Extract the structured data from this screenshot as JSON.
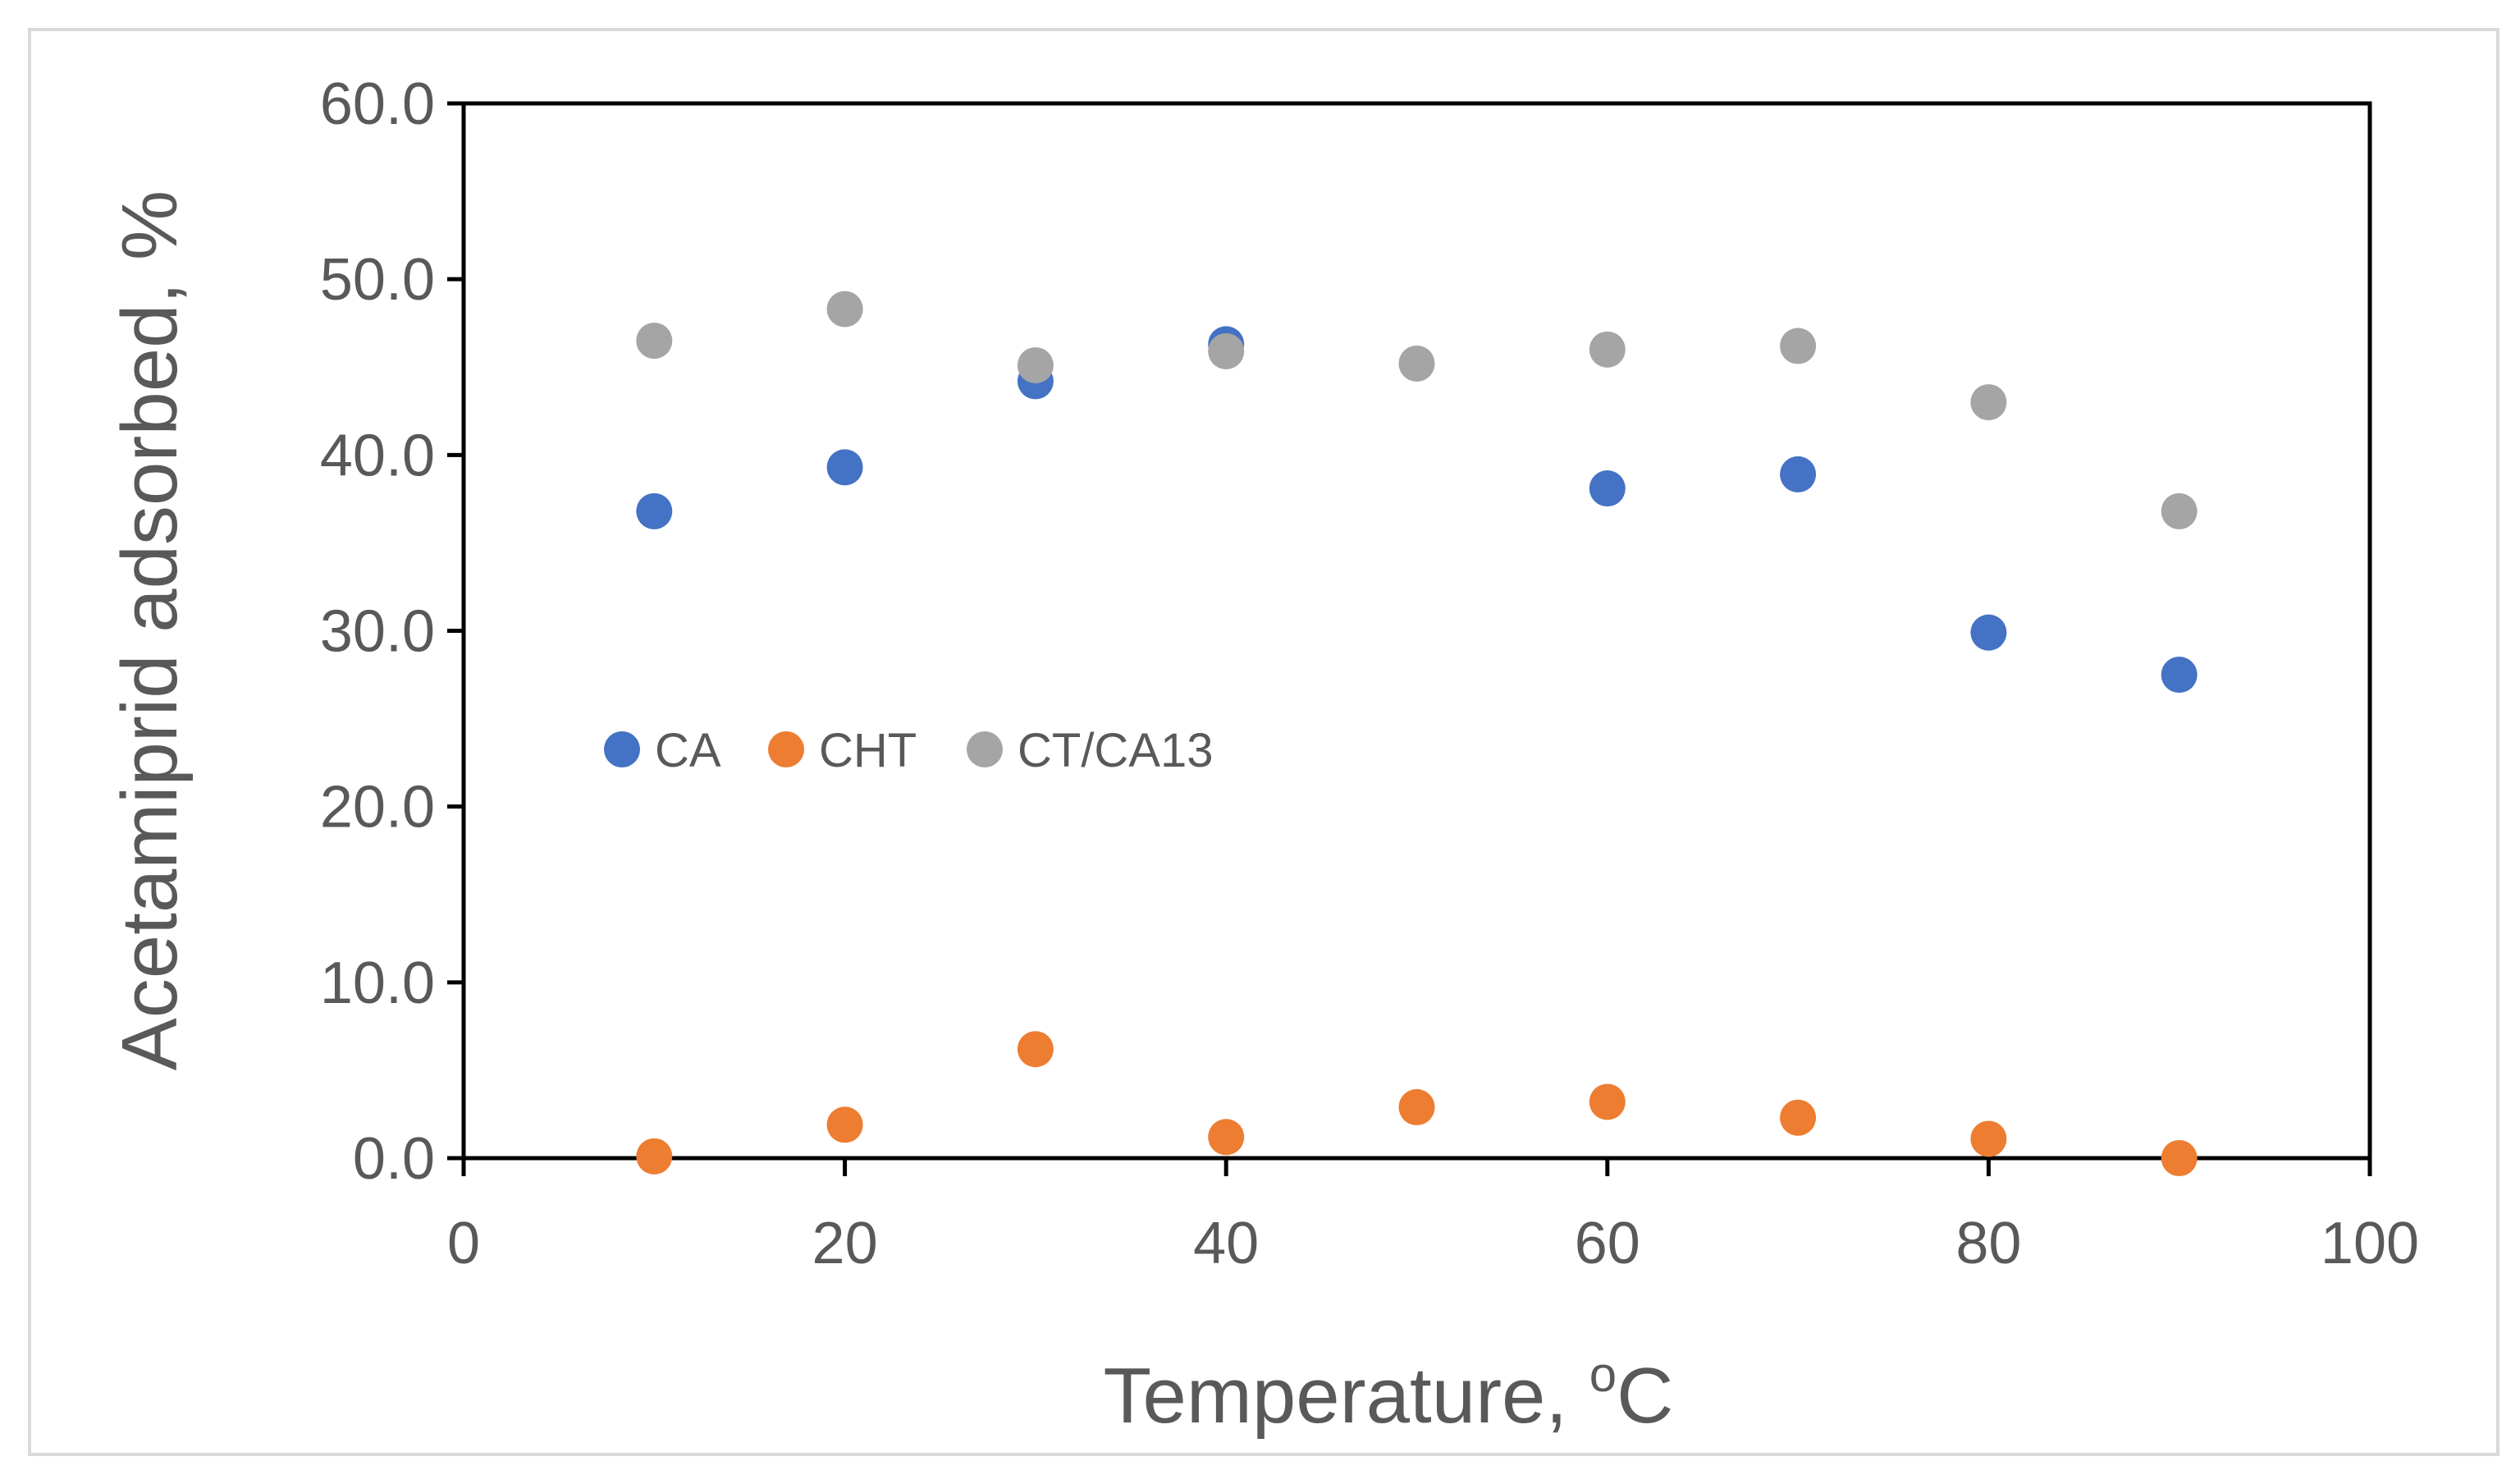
{
  "chart_data": {
    "type": "scatter",
    "title": "",
    "xlabel": "Temperature, ",
    "xlabel_unit_superscript": "o",
    "xlabel_unit": "C",
    "ylabel": "Acetamiprid adsorbed, %",
    "xlim": [
      0,
      100
    ],
    "ylim": [
      0,
      60
    ],
    "x_ticks": [
      "0",
      "20",
      "40",
      "60",
      "80",
      "100"
    ],
    "x_tick_values": [
      0,
      20,
      40,
      60,
      80,
      100
    ],
    "y_ticks": [
      "0.0",
      "10.0",
      "20.0",
      "30.0",
      "40.0",
      "50.0",
      "60.0"
    ],
    "y_tick_values": [
      0,
      10,
      20,
      30,
      40,
      50,
      60
    ],
    "grid": false,
    "legend_position": "inside-left-middle",
    "series": [
      {
        "name": "CA",
        "color": "#4472C4",
        "x": [
          10,
          20,
          30,
          40,
          60,
          70,
          80,
          90
        ],
        "y": [
          36.8,
          39.3,
          44.2,
          46.3,
          38.1,
          38.9,
          29.9,
          27.5
        ]
      },
      {
        "name": "CHT",
        "color": "#ED7D31",
        "x": [
          10,
          20,
          30,
          40,
          50,
          60,
          70,
          80,
          90
        ],
        "y": [
          0.1,
          1.9,
          6.2,
          1.2,
          2.9,
          3.2,
          2.3,
          1.1,
          0.0
        ]
      },
      {
        "name": "CT/CA13",
        "color": "#A5A5A5",
        "x": [
          10,
          20,
          30,
          40,
          50,
          60,
          70,
          80,
          90
        ],
        "y": [
          46.5,
          48.3,
          45.1,
          45.9,
          45.2,
          46.0,
          46.2,
          43.0,
          36.8
        ]
      }
    ]
  }
}
